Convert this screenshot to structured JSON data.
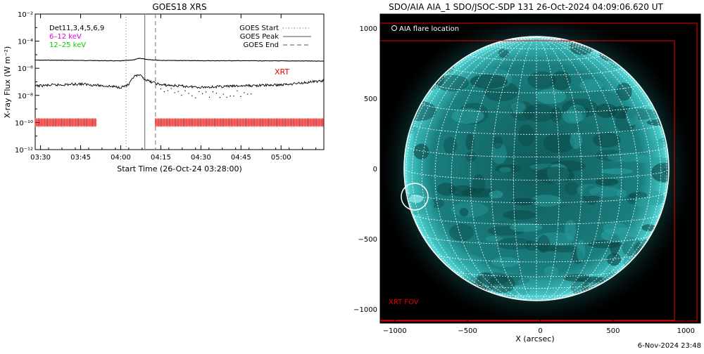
{
  "goes": {
    "title": "GOES18 XRS",
    "ylabel": "X-ray Flux (W m⁻²)",
    "xlabel": "Start Time (26-Oct-24 03:28:00)",
    "ytick_labels": [
      "10⁻²",
      "10⁻⁴",
      "10⁻⁶",
      "10⁻⁸",
      "10⁻¹⁰",
      "10⁻¹²"
    ],
    "xtick_labels": [
      "03:30",
      "03:45",
      "04:00",
      "04:15",
      "04:30",
      "04:45",
      "05:00"
    ],
    "legend_left": [
      {
        "text": "Det11,3,4,5,6,9",
        "color": "#000000"
      },
      {
        "text": "6–12 keV",
        "color": "#dd00dd"
      },
      {
        "text": "12–25 keV",
        "color": "#00cc00"
      }
    ],
    "legend_right": [
      {
        "text": "GOES Start",
        "style": "dotted"
      },
      {
        "text": "GOES Peak",
        "style": "solid"
      },
      {
        "text": "GOES End",
        "style": "dashed"
      }
    ],
    "xrt_label": "XRT",
    "colors": {
      "xrt": "#ee0000",
      "data": "#000000",
      "markers": "#888888"
    }
  },
  "aia": {
    "title": "SDO/AIA AIA_1 SDO/JSOC-SDP 131 26-Oct-2024 04:09:06.620 UT",
    "legend": "AIA flare location",
    "fov_label": "XRT FOV",
    "xlabel": "X (arcsec)",
    "xtick_labels": [
      "−1000",
      "−500",
      "0",
      "500",
      "1000"
    ],
    "ytick_labels": [
      "1000",
      "500",
      "0",
      "−500",
      "−1000"
    ],
    "colors": {
      "disk": "#1f8f8f",
      "grid": "#ffffff",
      "fov": "#ee0000",
      "background": "#000000"
    }
  },
  "footer": "6-Nov-2024 23:48",
  "chart_data": [
    {
      "type": "line",
      "title": "GOES18 XRS",
      "xlabel": "Start Time (26-Oct-24 03:28:00)",
      "ylabel": "X-ray Flux (W m⁻²)",
      "y_scale": "log",
      "ylim": [
        1e-12,
        0.01
      ],
      "xlim": [
        "03:28",
        "05:16"
      ],
      "grid": false,
      "legend_placement": "top-right",
      "series": [
        {
          "x": [
            "03:28",
            "03:45",
            "04:00",
            "04:05",
            "04:07",
            "04:10",
            "04:15",
            "04:30",
            "04:45",
            "05:00",
            "05:16"
          ],
          "values": [
            4e-06,
            3.8e-06,
            3.5e-06,
            4.2e-06,
            5.5e-06,
            4.5e-06,
            3.8e-06,
            3.6e-06,
            3.6e-06,
            3.5e-06,
            3.4e-06
          ]
        },
        {
          "x": [
            "03:28",
            "03:45",
            "04:00",
            "04:03",
            "04:05",
            "04:07",
            "04:10",
            "04:15",
            "04:30",
            "04:45",
            "05:00",
            "05:16"
          ],
          "values": [
            5e-08,
            7e-08,
            4e-08,
            6e-08,
            2.5e-07,
            3e-07,
            1.2e-07,
            6e-08,
            4e-08,
            5e-08,
            6e-08,
            1.2e-07
          ]
        }
      ],
      "vertical_markers": {
        "start": "04:02",
        "peak": "04:09",
        "end": "04:13"
      },
      "xrt_intervals": [
        [
          "03:28",
          "03:51"
        ],
        [
          "04:13",
          "05:16"
        ]
      ]
    },
    {
      "type": "image",
      "title": "SDO/AIA AIA_1 SDO/JSOC-SDP 131 26-Oct-2024 04:09:06.620 UT",
      "xlabel": "X (arcsec)",
      "xlim": [
        -1100,
        1100
      ],
      "ylim": [
        -1100,
        1100
      ],
      "flare_location": [
        -850,
        -200
      ],
      "xrt_fov": {
        "x": [
          -1100,
          1000
        ],
        "y": [
          -1100,
          900
        ]
      }
    }
  ]
}
